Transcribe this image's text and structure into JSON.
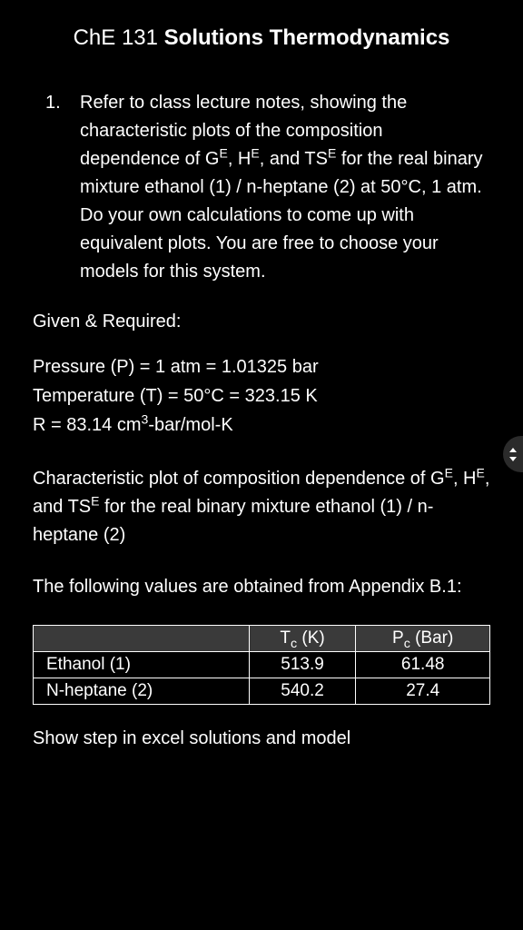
{
  "title": {
    "course_code": "ChE 131",
    "course_name": "Solutions Thermodynamics"
  },
  "problem": {
    "number": "1.",
    "text_html": "Refer to class lecture notes, showing the characteristic plots of the composition dependence of G<sup>E</sup>, H<sup>E</sup>, and TS<sup>E</sup> for the real binary mixture ethanol (1) / n-heptane (2) at 50°C, 1 atm. Do your own calculations to come up with equivalent plots. You are free to choose your models for this system."
  },
  "given_required_label": "Given & Required:",
  "given": {
    "pressure": "Pressure (P) = 1 atm = 1.01325 bar",
    "temperature": "Temperature (T) = 50°C = 323.15 K",
    "gas_constant_html": "R = 83.14 cm<sup>3</sup>-bar/mol-K"
  },
  "characteristic_plot_html": "Characteristic plot of composition dependence of G<sup>E</sup>, H<sup>E</sup>, and TS<sup>E</sup> for the real binary mixture ethanol (1) / n-heptane (2)",
  "appendix_note": "The following values are obtained from Appendix B.1:",
  "table": {
    "headers": {
      "blank": "",
      "tc_html": "T<sub>c</sub> (K)",
      "pc_html": "P<sub>c</sub> (Bar)"
    },
    "rows": [
      {
        "component": "Ethanol (1)",
        "tc": "513.9",
        "pc": "61.48"
      },
      {
        "component": "N-heptane (2)",
        "tc": "540.2",
        "pc": "27.4"
      }
    ],
    "style": {
      "header_bg": "#3a3a3a",
      "border_color": "#ffffff",
      "text_color": "#ffffff"
    }
  },
  "footer_instruction": "Show step in excel solutions and model",
  "colors": {
    "background": "#000000",
    "text": "#ffffff"
  }
}
